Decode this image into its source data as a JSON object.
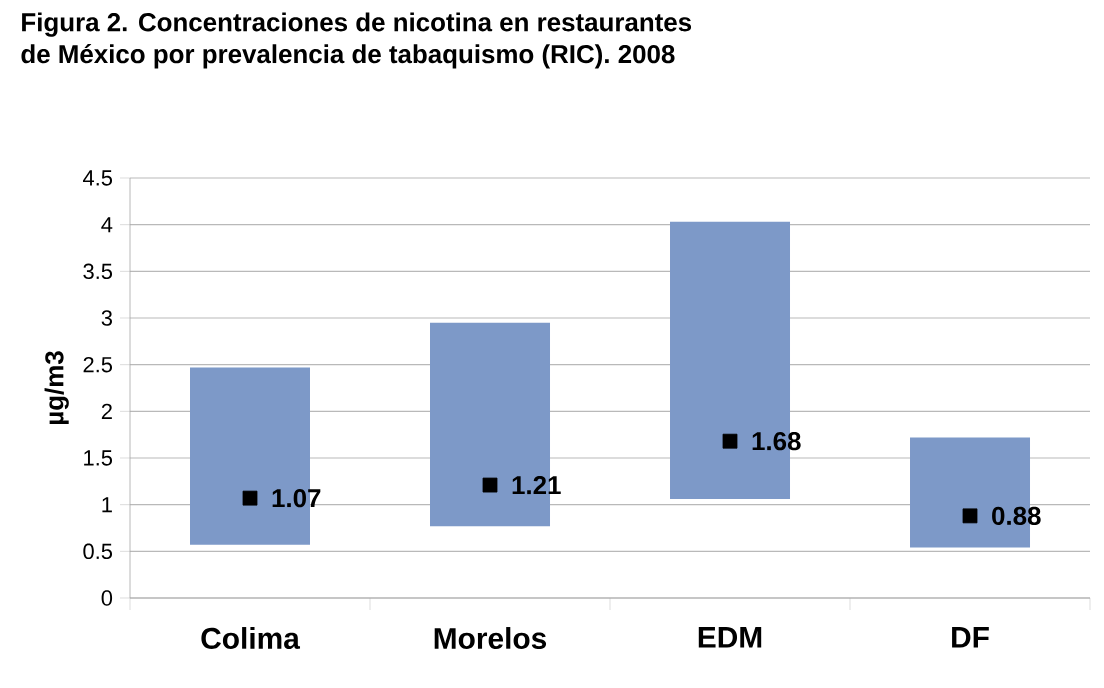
{
  "chart_data": {
    "type": "bar",
    "title": "Figura 2. Concentraciones de nicotina en restaurantes\nde México por prevalencia de tabaquismo (RIC). 2008",
    "ylabel": "µg/m3",
    "categories": [
      "Colima",
      "Morelos",
      "EDM",
      "DF"
    ],
    "series": [
      {
        "type": "bar",
        "color": "#7d99c8",
        "base": [
          0.57,
          0.77,
          1.06,
          0.54
        ],
        "values": [
          1.9,
          2.18,
          2.97,
          1.18
        ]
      },
      {
        "type": "scatter",
        "marker": "square",
        "color": "#000000",
        "x": [
          "Colima",
          "Morelos",
          "EDM",
          "DF"
        ],
        "values": [
          1.07,
          1.21,
          1.68,
          0.88
        ],
        "value_labels": [
          "1.07",
          "1.21",
          "1.68",
          "0.88"
        ]
      }
    ],
    "ylim": [
      0,
      4.5
    ],
    "yticks": [
      0,
      0.5,
      1,
      1.5,
      2,
      2.5,
      3,
      3.5,
      4,
      4.5
    ],
    "grid": "y"
  }
}
